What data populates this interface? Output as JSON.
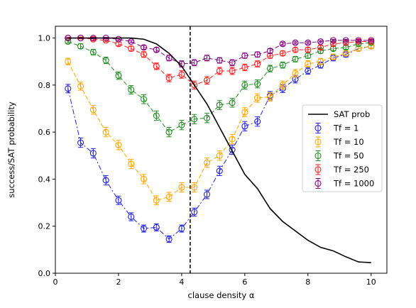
{
  "chart_data": {
    "type": "line",
    "xlabel": "clause density α",
    "ylabel": "success/SAT probability",
    "xlim": [
      0,
      10.5
    ],
    "ylim": [
      0,
      1.05
    ],
    "xticks": [
      0,
      2,
      4,
      6,
      8,
      10
    ],
    "yticks": [
      0.0,
      0.2,
      0.4,
      0.6,
      0.8,
      1.0
    ],
    "ytick_labels": [
      "0.0",
      "0.2",
      "0.4",
      "0.6",
      "0.8",
      "1.0"
    ],
    "grid": false,
    "legend_position": "center-right",
    "vline": {
      "x": 4.27,
      "style": "dashed",
      "color": "#000000"
    },
    "x": [
      0.4,
      0.8,
      1.2,
      1.6,
      2.0,
      2.4,
      2.8,
      3.2,
      3.6,
      4.0,
      4.4,
      4.8,
      5.2,
      5.6,
      6.0,
      6.4,
      6.8,
      7.2,
      7.6,
      8.0,
      8.4,
      8.8,
      9.2,
      9.6,
      10.0
    ],
    "sat_prob": {
      "name": "SAT prob",
      "color": "#000000",
      "x": [
        0.4,
        0.8,
        1.2,
        1.6,
        2.0,
        2.4,
        2.8,
        3.2,
        3.6,
        4.0,
        4.4,
        4.8,
        5.2,
        5.6,
        6.0,
        6.4,
        6.8,
        7.2,
        7.6,
        8.0,
        8.4,
        8.8,
        9.2,
        9.6,
        10.0
      ],
      "values": [
        1.0,
        1.0,
        1.0,
        1.0,
        1.0,
        1.0,
        0.995,
        0.975,
        0.935,
        0.88,
        0.8,
        0.72,
        0.62,
        0.52,
        0.42,
        0.36,
        0.275,
        0.22,
        0.18,
        0.14,
        0.11,
        0.095,
        0.07,
        0.048,
        0.045
      ]
    },
    "series": [
      {
        "name": "Tf = 1",
        "color": "#1f1fe0",
        "values": [
          0.785,
          0.555,
          0.51,
          0.395,
          0.31,
          0.24,
          0.19,
          0.195,
          0.145,
          0.19,
          0.26,
          0.335,
          0.435,
          0.525,
          0.625,
          0.645,
          0.755,
          0.785,
          0.825,
          0.86,
          0.885,
          0.915,
          0.93,
          0.955,
          0.965
        ],
        "errors": [
          0.018,
          0.02,
          0.02,
          0.02,
          0.018,
          0.017,
          0.015,
          0.015,
          0.014,
          0.015,
          0.017,
          0.018,
          0.02,
          0.02,
          0.02,
          0.02,
          0.018,
          0.017,
          0.016,
          0.014,
          0.013,
          0.012,
          0.011,
          0.01,
          0.009
        ]
      },
      {
        "name": "Tf = 10",
        "color": "#ffa500",
        "values": [
          0.9,
          0.795,
          0.695,
          0.6,
          0.545,
          0.465,
          0.4,
          0.31,
          0.325,
          0.365,
          0.365,
          0.47,
          0.5,
          0.57,
          0.685,
          0.745,
          0.75,
          0.8,
          0.85,
          0.89,
          0.9,
          0.92,
          0.935,
          0.955,
          0.965
        ],
        "errors": [
          0.014,
          0.017,
          0.019,
          0.02,
          0.02,
          0.02,
          0.02,
          0.019,
          0.019,
          0.02,
          0.02,
          0.02,
          0.02,
          0.02,
          0.019,
          0.018,
          0.018,
          0.017,
          0.016,
          0.014,
          0.013,
          0.012,
          0.011,
          0.01,
          0.009
        ]
      },
      {
        "name": "Tf = 50",
        "color": "#228b22",
        "values": [
          0.985,
          0.965,
          0.94,
          0.905,
          0.84,
          0.78,
          0.74,
          0.67,
          0.6,
          0.63,
          0.655,
          0.66,
          0.715,
          0.725,
          0.8,
          0.805,
          0.87,
          0.885,
          0.91,
          0.925,
          0.945,
          0.955,
          0.96,
          0.975,
          0.98
        ],
        "errors": [
          0.007,
          0.01,
          0.012,
          0.014,
          0.016,
          0.018,
          0.019,
          0.02,
          0.02,
          0.02,
          0.02,
          0.02,
          0.019,
          0.019,
          0.017,
          0.017,
          0.014,
          0.013,
          0.012,
          0.011,
          0.01,
          0.009,
          0.008,
          0.007,
          0.006
        ]
      },
      {
        "name": "Tf = 250",
        "color": "#ff1f1f",
        "values": [
          1.0,
          1.0,
          0.995,
          0.99,
          0.975,
          0.955,
          0.93,
          0.88,
          0.83,
          0.845,
          0.8,
          0.82,
          0.86,
          0.86,
          0.875,
          0.89,
          0.925,
          0.935,
          0.95,
          0.95,
          0.96,
          0.975,
          0.98,
          0.985,
          0.985
        ],
        "errors": [
          0.003,
          0.004,
          0.005,
          0.006,
          0.008,
          0.01,
          0.012,
          0.014,
          0.016,
          0.016,
          0.017,
          0.016,
          0.015,
          0.015,
          0.014,
          0.013,
          0.011,
          0.01,
          0.009,
          0.009,
          0.008,
          0.007,
          0.006,
          0.005,
          0.005
        ]
      },
      {
        "name": "Tf = 1000",
        "color": "#800080",
        "values": [
          1.0,
          1.0,
          1.0,
          1.0,
          0.995,
          0.985,
          0.96,
          0.95,
          0.915,
          0.89,
          0.895,
          0.915,
          0.905,
          0.895,
          0.925,
          0.93,
          0.945,
          0.975,
          0.98,
          0.98,
          0.985,
          0.99,
          0.99,
          0.99,
          0.99
        ],
        "errors": [
          0.002,
          0.002,
          0.003,
          0.003,
          0.004,
          0.005,
          0.008,
          0.009,
          0.012,
          0.013,
          0.013,
          0.012,
          0.012,
          0.013,
          0.011,
          0.011,
          0.01,
          0.007,
          0.006,
          0.006,
          0.005,
          0.004,
          0.004,
          0.004,
          0.004
        ]
      }
    ]
  }
}
